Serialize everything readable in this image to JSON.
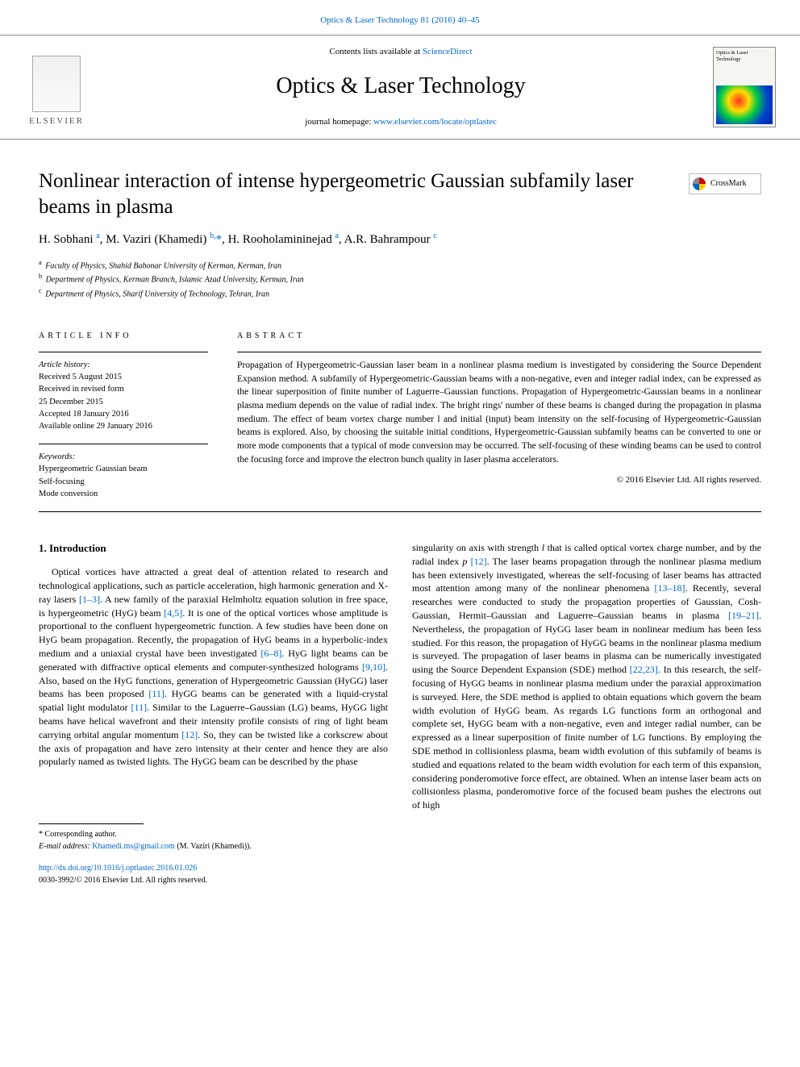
{
  "header": {
    "topLink": "Optics & Laser Technology 81 (2016) 40–45",
    "contentsPrefix": "Contents lists available at ",
    "contentsLink": "ScienceDirect",
    "journalTitle": "Optics & Laser Technology",
    "homepagePrefix": "journal homepage: ",
    "homepageLink": "www.elsevier.com/locate/optlastec",
    "elsevierLabel": "ELSEVIER",
    "coverLabel": "Optics & Laser Technology"
  },
  "article": {
    "title": "Nonlinear interaction of intense hypergeometric Gaussian subfamily laser beams in plasma",
    "crossmark": "CrossMark",
    "authorsHtml": "H. Sobhani <sup>a</sup>, M. Vaziri (Khamedi) <sup>b,</sup><span class='corr'>*</span>, H. Rooholamininejad <sup>a</sup>, A.R. Bahrampour <sup>c</sup>",
    "affiliations": [
      {
        "sup": "a",
        "text": "Faculty of Physics, Shahid Bahonar University of Kerman, Kerman, Iran"
      },
      {
        "sup": "b",
        "text": "Department of Physics, Kerman Branch, Islamic Azad University, Kerman, Iran"
      },
      {
        "sup": "c",
        "text": "Department of Physics, Sharif University of Technology, Tehran, Iran"
      }
    ]
  },
  "meta": {
    "infoHeading": "ARTICLE INFO",
    "historyLabel": "Article history:",
    "history": [
      "Received 5 August 2015",
      "Received in revised form",
      "25 December 2015",
      "Accepted 18 January 2016",
      "Available online 29 January 2016"
    ],
    "keywordsLabel": "Keywords:",
    "keywords": [
      "Hypergeometric Gaussian beam",
      "Self-focusing",
      "Mode conversion"
    ]
  },
  "abstract": {
    "heading": "ABSTRACT",
    "text": "Propagation of Hypergeometric-Gaussian laser beam in a nonlinear plasma medium is investigated by considering the Source Dependent Expansion method. A subfamily of Hypergeometric-Gaussian beams with a non-negative, even and integer radial index, can be expressed as the linear superposition of finite number of Laguerre–Gaussian functions. Propagation of Hypergeometric-Gaussian beams in a nonlinear plasma medium depends on the value of radial index. The bright rings' number of these beams is changed during the propagation in plasma medium. The effect of beam vortex charge number l and initial (input) beam intensity on the self-focusing of Hypergeometric-Gaussian beams is explored. Also, by choosing the suitable initial conditions, Hypergeometric-Gaussian subfamily beams can be converted to one or more mode components that a typical of mode conversion may be occurred. The self-focusing of these winding beams can be used to control the focusing force and improve the electron bunch quality in laser plasma accelerators.",
    "copyright": "© 2016 Elsevier Ltd. All rights reserved."
  },
  "body": {
    "sectionHeading": "1. Introduction",
    "col1": "Optical vortices have attracted a great deal of attention related to research and technological applications, such as particle acceleration, high harmonic generation and X-ray lasers <a class='ref' href='#'>[1–3]</a>. A new family of the paraxial Helmholtz equation solution in free space, is hypergeometric (HyG) beam <a class='ref' href='#'>[4,5]</a>. It is one of the optical vortices whose amplitude is proportional to the confluent hypergeometric function. A few studies have been done on HyG beam propagation. Recently, the propagation of HyG beams in a hyperbolic-index medium and a uniaxial crystal have been investigated <a class='ref' href='#'>[6–8]</a>. HyG light beams can be generated with diffractive optical elements and computer-synthesized holograms <a class='ref' href='#'>[9,10]</a>. Also, based on the HyG functions, generation of Hypergeometric Gaussian (HyGG) laser beams has been proposed <a class='ref' href='#'>[11]</a>. HyGG beams can be generated with a liquid-crystal spatial light modulator <a class='ref' href='#'>[11]</a>. Similar to the Laguerre–Gaussian (LG) beams, HyGG light beams have helical wavefront and their intensity profile consists of ring of light beam carrying orbital angular momentum <a class='ref' href='#'>[12]</a>. So, they can be twisted like a corkscrew about the axis of propagation and have zero intensity at their center and hence they are also popularly named as twisted lights. The HyGG beam can be described by the phase",
    "col2": "singularity on axis with strength <span class='ital'>l</span> that is called optical vortex charge number, and by the radial index <span class='ital'>p</span> <a class='ref' href='#'>[12]</a>. The laser beams propagation through the nonlinear plasma medium has been extensively investigated, whereas the self-focusing of laser beams has attracted most attention among many of the nonlinear phenomena <a class='ref' href='#'>[13–18]</a>. Recently, several researches were conducted to study the propagation properties of Gaussian, Cosh-Gaussian, Hermit–Gaussian and Laguerre–Gaussian beams in plasma <a class='ref' href='#'>[19–21]</a>. Nevertheless, the propagation of HyGG laser beam in nonlinear medium has been less studied. For this reason, the propagation of HyGG beams in the nonlinear plasma medium is surveyed. The propagation of laser beams in plasma can be numerically investigated using the Source Dependent Expansion (SDE) method <a class='ref' href='#'>[22,23]</a>. In this research, the self-focusing of HyGG beams in nonlinear plasma medium under the paraxial approximation is surveyed. Here, the SDE method is applied to obtain equations which govern the beam width evolution of HyGG beam. As regards LG functions form an orthogonal and complete set, HyGG beam with a non-negative, even and integer radial number, can be expressed as a linear superposition of finite number of LG functions. By employing the SDE method in collisionless plasma, beam width evolution of this subfamily of beams is studied and equations related to the beam width evolution for each term of this expansion, considering ponderomotive force effect, are obtained. When an intense laser beam acts on collisionless plasma, ponderomotive force of the focused beam pushes the electrons out of high"
  },
  "footer": {
    "corrLabel": "* Corresponding author.",
    "emailLabel": "E-mail address: ",
    "email": "Khamedi.ms@gmail.com",
    "emailSuffix": " (M. Vaziri (Khamedi)).",
    "doi": "http://dx.doi.org/10.1016/j.optlastec.2016.01.026",
    "issn": "0030-3992/© 2016 Elsevier Ltd. All rights reserved."
  },
  "colors": {
    "link": "#0066cc",
    "text": "#000000",
    "border": "#888888",
    "background": "#ffffff"
  },
  "typography": {
    "baseFont": "Georgia, Times New Roman, serif",
    "baseSize": 13,
    "titleSize": 25,
    "journalTitleSize": 28,
    "abstractSize": 11.5,
    "metaSize": 10.5,
    "footerSize": 10
  },
  "layout": {
    "pageWidth": 992,
    "pageHeight": 1323,
    "sidePadding": 48,
    "columnGap": 30
  }
}
